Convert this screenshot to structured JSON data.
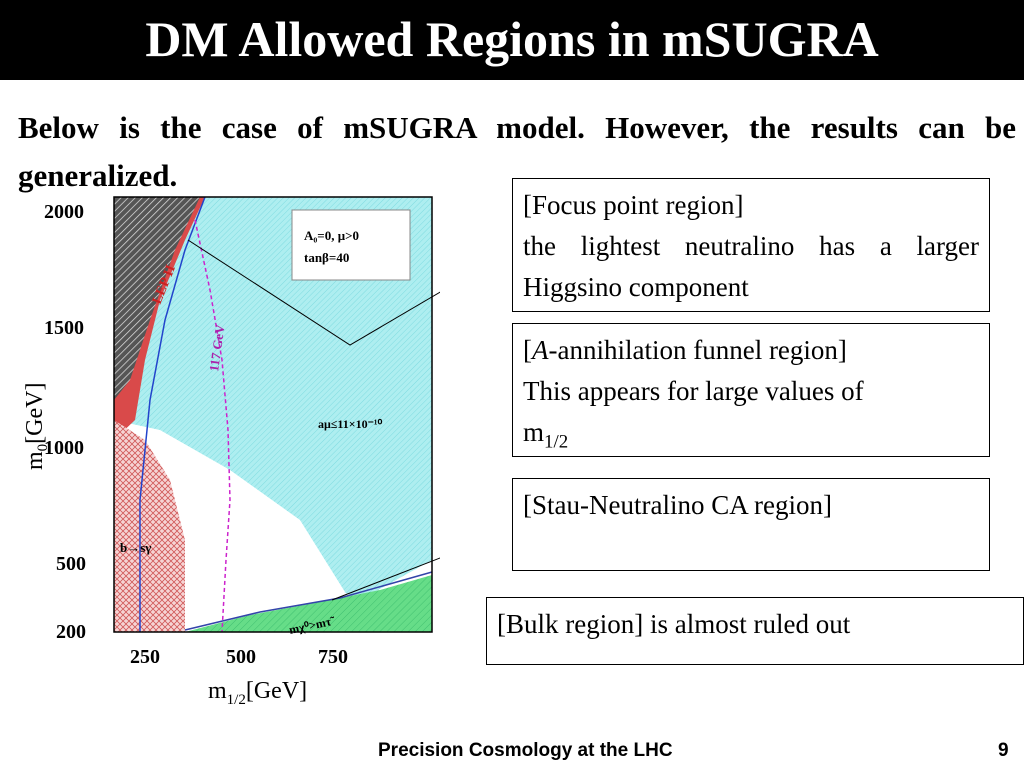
{
  "slide": {
    "title": "DM Allowed Regions in mSUGRA",
    "intro": "Below is the case of  mSUGRA model. However, the results can be generalized.",
    "footer_text": "Precision Cosmology at the LHC",
    "page_number": "9"
  },
  "plot": {
    "y_ticks": [
      "2000",
      "1500",
      "1000",
      "500",
      "200"
    ],
    "x_ticks": [
      "250",
      "500",
      "750"
    ],
    "y_label": "m",
    "y_label_sub": "0",
    "y_label_unit": "[GeV]",
    "x_label": "m",
    "x_label_sub": "1/2",
    "x_label_unit": "[GeV]",
    "params_line1": "A₀=0,  μ>0",
    "params_line2": "tanβ=40",
    "lep_label": "LEP II",
    "higgs_label": "117 GeV",
    "amu_label": "aμ≤11×10⁻¹⁰",
    "bsg_label": "b→sγ",
    "mass_label": "mχ⁰>mτ̃",
    "colors": {
      "cyan": "#aeeef0",
      "red": "#e06a6a",
      "green": "#66dd88",
      "gray": "#7a7a7a"
    }
  },
  "boxes": {
    "focus_title": "[Focus point region]",
    "focus_body": "the lightest neutralino has a larger Higgsino component",
    "funnel_prefix": "[",
    "funnel_italic": "A",
    "funnel_rest": "-annihilation funnel region]",
    "funnel_body": "This appears for large values of",
    "funnel_m": "m",
    "funnel_sub": "1/2",
    "stau_title": "[Stau-Neutralino CA region]",
    "bulk_text": "[Bulk region] is almost ruled out"
  }
}
